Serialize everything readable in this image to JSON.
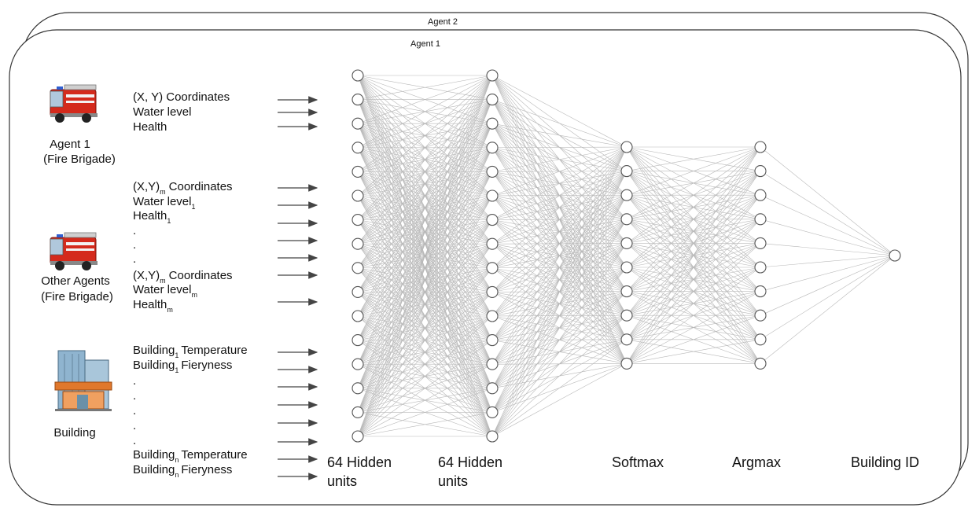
{
  "frames": {
    "outer_title": "Agent 2",
    "inner_title": "Agent 1"
  },
  "agents": {
    "agent1_name": "Agent 1",
    "agent1_type": "(Fire Brigade)",
    "other_name": "Other Agents",
    "other_type": "(Fire Brigade)",
    "building_name": "Building",
    "truck_icon": "fire-truck-icon",
    "building_icon": "building-icon"
  },
  "features": {
    "agent1": [
      "(X, Y) Coordinates",
      "Water level",
      "Health"
    ],
    "dot": ".",
    "coord": "Coordinates",
    "xy": "(X,Y)",
    "water": "Water level",
    "health": "Health",
    "building": "Building",
    "temperature": "Temperature",
    "fieryness": "Fieryness",
    "sub_1": "1",
    "sub_m": "m",
    "sub_n": "n"
  },
  "layers": {
    "hidden1_line1": "64 Hidden",
    "hidden1_line2": "units",
    "hidden2_line1": "64 Hidden",
    "hidden2_line2": "units",
    "softmax": "Softmax",
    "argmax": "Argmax",
    "output": "Building ID"
  },
  "colors": {
    "edge": "#b8b8b8",
    "node_stroke": "#555555",
    "truck_red": "#d42a1c",
    "building_orange": "#e0782c"
  }
}
